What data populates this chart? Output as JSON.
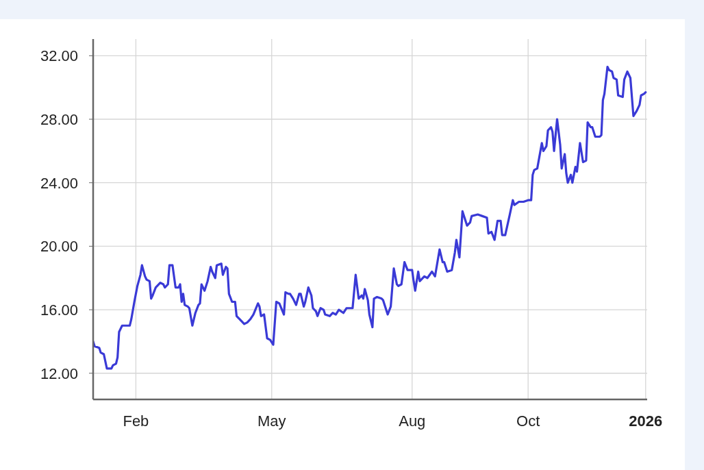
{
  "chart_data": {
    "type": "line",
    "color": "#3a3ad6",
    "x": [
      "2025-01-04",
      "2025-01-05",
      "2025-01-08",
      "2025-01-09",
      "2025-01-11",
      "2025-01-13",
      "2025-01-16",
      "2025-01-17",
      "2025-01-19",
      "2025-01-20",
      "2025-01-21",
      "2025-01-23",
      "2025-01-28",
      "2025-01-29",
      "2025-01-31",
      "2025-02-02",
      "2025-02-04",
      "2025-02-05",
      "2025-02-07",
      "2025-02-08",
      "2025-02-10",
      "2025-02-11",
      "2025-02-12",
      "2025-02-14",
      "2025-02-17",
      "2025-02-19",
      "2025-02-20",
      "2025-02-22",
      "2025-02-23",
      "2025-02-25",
      "2025-02-27",
      "2025-03-01",
      "2025-03-02",
      "2025-03-03",
      "2025-03-04",
      "2025-03-05",
      "2025-03-07",
      "2025-03-08",
      "2025-03-10",
      "2025-03-12",
      "2025-03-14",
      "2025-03-15",
      "2025-03-16",
      "2025-03-18",
      "2025-03-20",
      "2025-03-22",
      "2025-03-23",
      "2025-03-25",
      "2025-03-26",
      "2025-03-29",
      "2025-03-30",
      "2025-04-01",
      "2025-04-02",
      "2025-04-03",
      "2025-04-05",
      "2025-04-07",
      "2025-04-08",
      "2025-04-10",
      "2025-04-13",
      "2025-04-15",
      "2025-04-17",
      "2025-04-19",
      "2025-04-22",
      "2025-04-23",
      "2025-04-24",
      "2025-04-26",
      "2025-04-28",
      "2025-04-30",
      "2025-05-02",
      "2025-05-04",
      "2025-05-06",
      "2025-05-09",
      "2025-05-10",
      "2025-05-12",
      "2025-05-13",
      "2025-05-15",
      "2025-05-17",
      "2025-05-19",
      "2025-05-20",
      "2025-05-22",
      "2025-05-23",
      "2025-05-25",
      "2025-05-27",
      "2025-05-28",
      "2025-05-30",
      "2025-05-31",
      "2025-06-02",
      "2025-06-04",
      "2025-06-05",
      "2025-06-08",
      "2025-06-10",
      "2025-06-12",
      "2025-06-14",
      "2025-06-17",
      "2025-06-19",
      "2025-06-23",
      "2025-06-25",
      "2025-06-27",
      "2025-06-29",
      "2025-06-30",
      "2025-07-01",
      "2025-07-03",
      "2025-07-04",
      "2025-07-06",
      "2025-07-07",
      "2025-07-09",
      "2025-07-12",
      "2025-07-13",
      "2025-07-16",
      "2025-07-18",
      "2025-07-20",
      "2025-07-22",
      "2025-07-23",
      "2025-07-25",
      "2025-07-27",
      "2025-07-29",
      "2025-08-01",
      "2025-08-02",
      "2025-08-03",
      "2025-08-05",
      "2025-08-06",
      "2025-08-09",
      "2025-08-11",
      "2025-08-14",
      "2025-08-16",
      "2025-08-19",
      "2025-08-21",
      "2025-08-22",
      "2025-08-24",
      "2025-08-27",
      "2025-08-29",
      "2025-08-30",
      "2025-09-01",
      "2025-09-03",
      "2025-09-06",
      "2025-09-08",
      "2025-09-09",
      "2025-09-13",
      "2025-09-16",
      "2025-09-19",
      "2025-09-20",
      "2025-09-22",
      "2025-09-24",
      "2025-09-26",
      "2025-09-28",
      "2025-09-29",
      "2025-10-01",
      "2025-10-04",
      "2025-10-06",
      "2025-10-07",
      "2025-10-10",
      "2025-10-13",
      "2025-10-16",
      "2025-10-18",
      "2025-10-19",
      "2025-10-20",
      "2025-10-22",
      "2025-10-25",
      "2025-10-26",
      "2025-10-28",
      "2025-10-29",
      "2025-10-31",
      "2025-11-01",
      "2025-11-02",
      "2025-11-04",
      "2025-11-06",
      "2025-11-07",
      "2025-11-09",
      "2025-11-10",
      "2025-11-11",
      "2025-11-13",
      "2025-11-14",
      "2025-11-16",
      "2025-11-17",
      "2025-11-19",
      "2025-11-21",
      "2025-11-23",
      "2025-11-24",
      "2025-11-26",
      "2025-11-27",
      "2025-11-29",
      "2025-12-02",
      "2025-12-03",
      "2025-12-04",
      "2025-12-05",
      "2025-12-07",
      "2025-12-08",
      "2025-12-10",
      "2025-12-11",
      "2025-12-13",
      "2025-12-14",
      "2025-12-17",
      "2025-12-18",
      "2025-12-20",
      "2025-12-22",
      "2025-12-24",
      "2025-12-26",
      "2025-12-28",
      "2025-12-29",
      "2025-12-31",
      "2026-01-01"
    ],
    "values": [
      14.0,
      13.7,
      13.6,
      13.3,
      13.2,
      12.3,
      12.3,
      12.5,
      12.6,
      13.0,
      14.6,
      15.0,
      15.0,
      15.4,
      16.5,
      17.5,
      18.2,
      18.8,
      18.1,
      17.9,
      17.8,
      16.7,
      16.9,
      17.4,
      17.7,
      17.6,
      17.4,
      17.6,
      18.8,
      18.8,
      17.4,
      17.4,
      17.6,
      16.5,
      17.0,
      16.3,
      16.2,
      16.1,
      15.0,
      15.8,
      16.3,
      16.4,
      17.6,
      17.2,
      17.8,
      18.7,
      18.4,
      18.0,
      18.8,
      18.9,
      18.2,
      18.7,
      18.6,
      17.0,
      16.5,
      16.5,
      15.6,
      15.4,
      15.1,
      15.2,
      15.4,
      15.7,
      16.4,
      16.2,
      15.6,
      15.7,
      14.2,
      14.1,
      13.8,
      16.5,
      16.4,
      15.7,
      17.1,
      17.0,
      17.0,
      16.7,
      16.3,
      17.0,
      17.0,
      16.2,
      16.5,
      17.4,
      16.9,
      16.1,
      15.9,
      15.6,
      16.1,
      16.0,
      15.7,
      15.6,
      15.8,
      15.7,
      16.0,
      15.8,
      16.1,
      16.1,
      18.2,
      16.7,
      16.9,
      16.7,
      17.3,
      16.6,
      15.7,
      14.9,
      16.7,
      16.8,
      16.7,
      16.6,
      15.7,
      16.2,
      18.6,
      17.6,
      17.5,
      17.6,
      19.0,
      18.5,
      18.5,
      17.8,
      17.2,
      18.4,
      17.8,
      18.1,
      18.0,
      18.4,
      18.1,
      19.8,
      19.0,
      19.0,
      18.4,
      18.5,
      19.6,
      20.4,
      19.3,
      22.2,
      21.3,
      21.5,
      21.9,
      22.0,
      21.9,
      21.8,
      20.8,
      20.9,
      20.4,
      21.6,
      21.6,
      20.7,
      20.7,
      22.0,
      22.9,
      22.6,
      22.8,
      22.8,
      22.9,
      22.9,
      24.5,
      24.8,
      24.9,
      26.5,
      26.0,
      26.3,
      27.3,
      27.5,
      27.2,
      26.0,
      28.0,
      26.4,
      24.9,
      25.8,
      24.6,
      24.0,
      24.5,
      24.0,
      25.0,
      24.7,
      26.5,
      25.3,
      25.4,
      27.8,
      27.5,
      27.5,
      26.9,
      26.9,
      27.0,
      29.2,
      29.6,
      31.3,
      31.1,
      31.0,
      30.6,
      30.5,
      29.5,
      29.4,
      30.5,
      31.0,
      30.6,
      28.2,
      28.5,
      28.9,
      29.5,
      29.6,
      29.7
    ],
    "xlim": [
      "2025-01-04",
      "2026-01-02"
    ],
    "xticks": [
      {
        "value": "2025-02-01",
        "label": "Feb"
      },
      {
        "value": "2025-05-01",
        "label": "May"
      },
      {
        "value": "2025-08-01",
        "label": "Aug"
      },
      {
        "value": "2025-10-16",
        "label": "Oct"
      },
      {
        "value": "2026-01-01",
        "label": "2026"
      }
    ],
    "ylim": [
      10.35,
      33.05
    ],
    "yticks": [
      {
        "value": 12,
        "label": "12.00"
      },
      {
        "value": 16,
        "label": "16.00"
      },
      {
        "value": 20,
        "label": "20.00"
      },
      {
        "value": 24,
        "label": "24.00"
      },
      {
        "value": 28,
        "label": "28.00"
      },
      {
        "value": 32,
        "label": "32.00"
      }
    ],
    "grid": true
  }
}
